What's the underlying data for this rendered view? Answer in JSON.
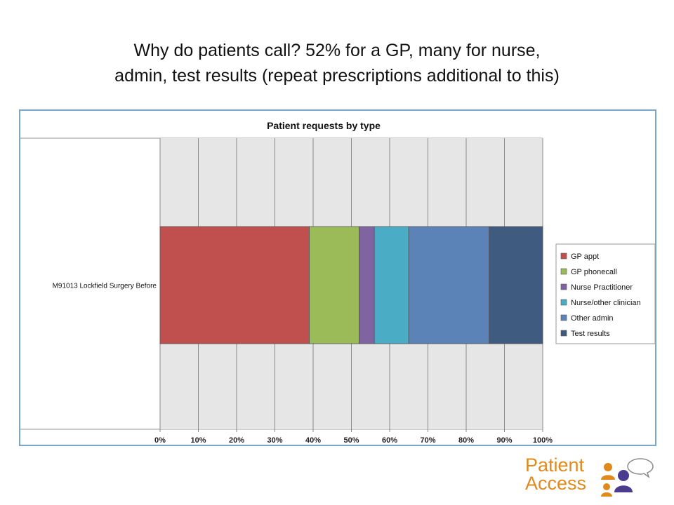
{
  "slide": {
    "title_line1": "Why do patients call?  52% for a GP, many for nurse,",
    "title_line2": "admin, test results (repeat prescriptions additional to this)"
  },
  "brand": {
    "line1": "Patient",
    "line2": "Access",
    "orange": "#e08a1e",
    "purple": "#4b3c8f"
  },
  "chart_data": {
    "type": "bar",
    "orientation": "horizontal",
    "stacked": true,
    "percent_stacked": true,
    "title": "Patient requests by type",
    "categories": [
      "M91013 Lockfield Surgery    Before"
    ],
    "series": [
      {
        "name": "GP appt",
        "values": [
          39
        ],
        "color": "#c0504d"
      },
      {
        "name": "GP phonecall",
        "values": [
          13
        ],
        "color": "#9bbb59"
      },
      {
        "name": "Nurse Practitioner",
        "values": [
          4
        ],
        "color": "#8064a2"
      },
      {
        "name": "Nurse/other clinician",
        "values": [
          9
        ],
        "color": "#4bacc6"
      },
      {
        "name": "Other admin",
        "values": [
          21
        ],
        "color": "#5b83b8"
      },
      {
        "name": "Test results",
        "values": [
          14
        ],
        "color": "#3f5b7f"
      }
    ],
    "xticks": [
      "0%",
      "10%",
      "20%",
      "30%",
      "40%",
      "50%",
      "60%",
      "70%",
      "80%",
      "90%",
      "100%"
    ],
    "xlim": [
      0,
      100
    ],
    "grid": true,
    "legend": "right",
    "plot_background": "#e6e6e6"
  }
}
